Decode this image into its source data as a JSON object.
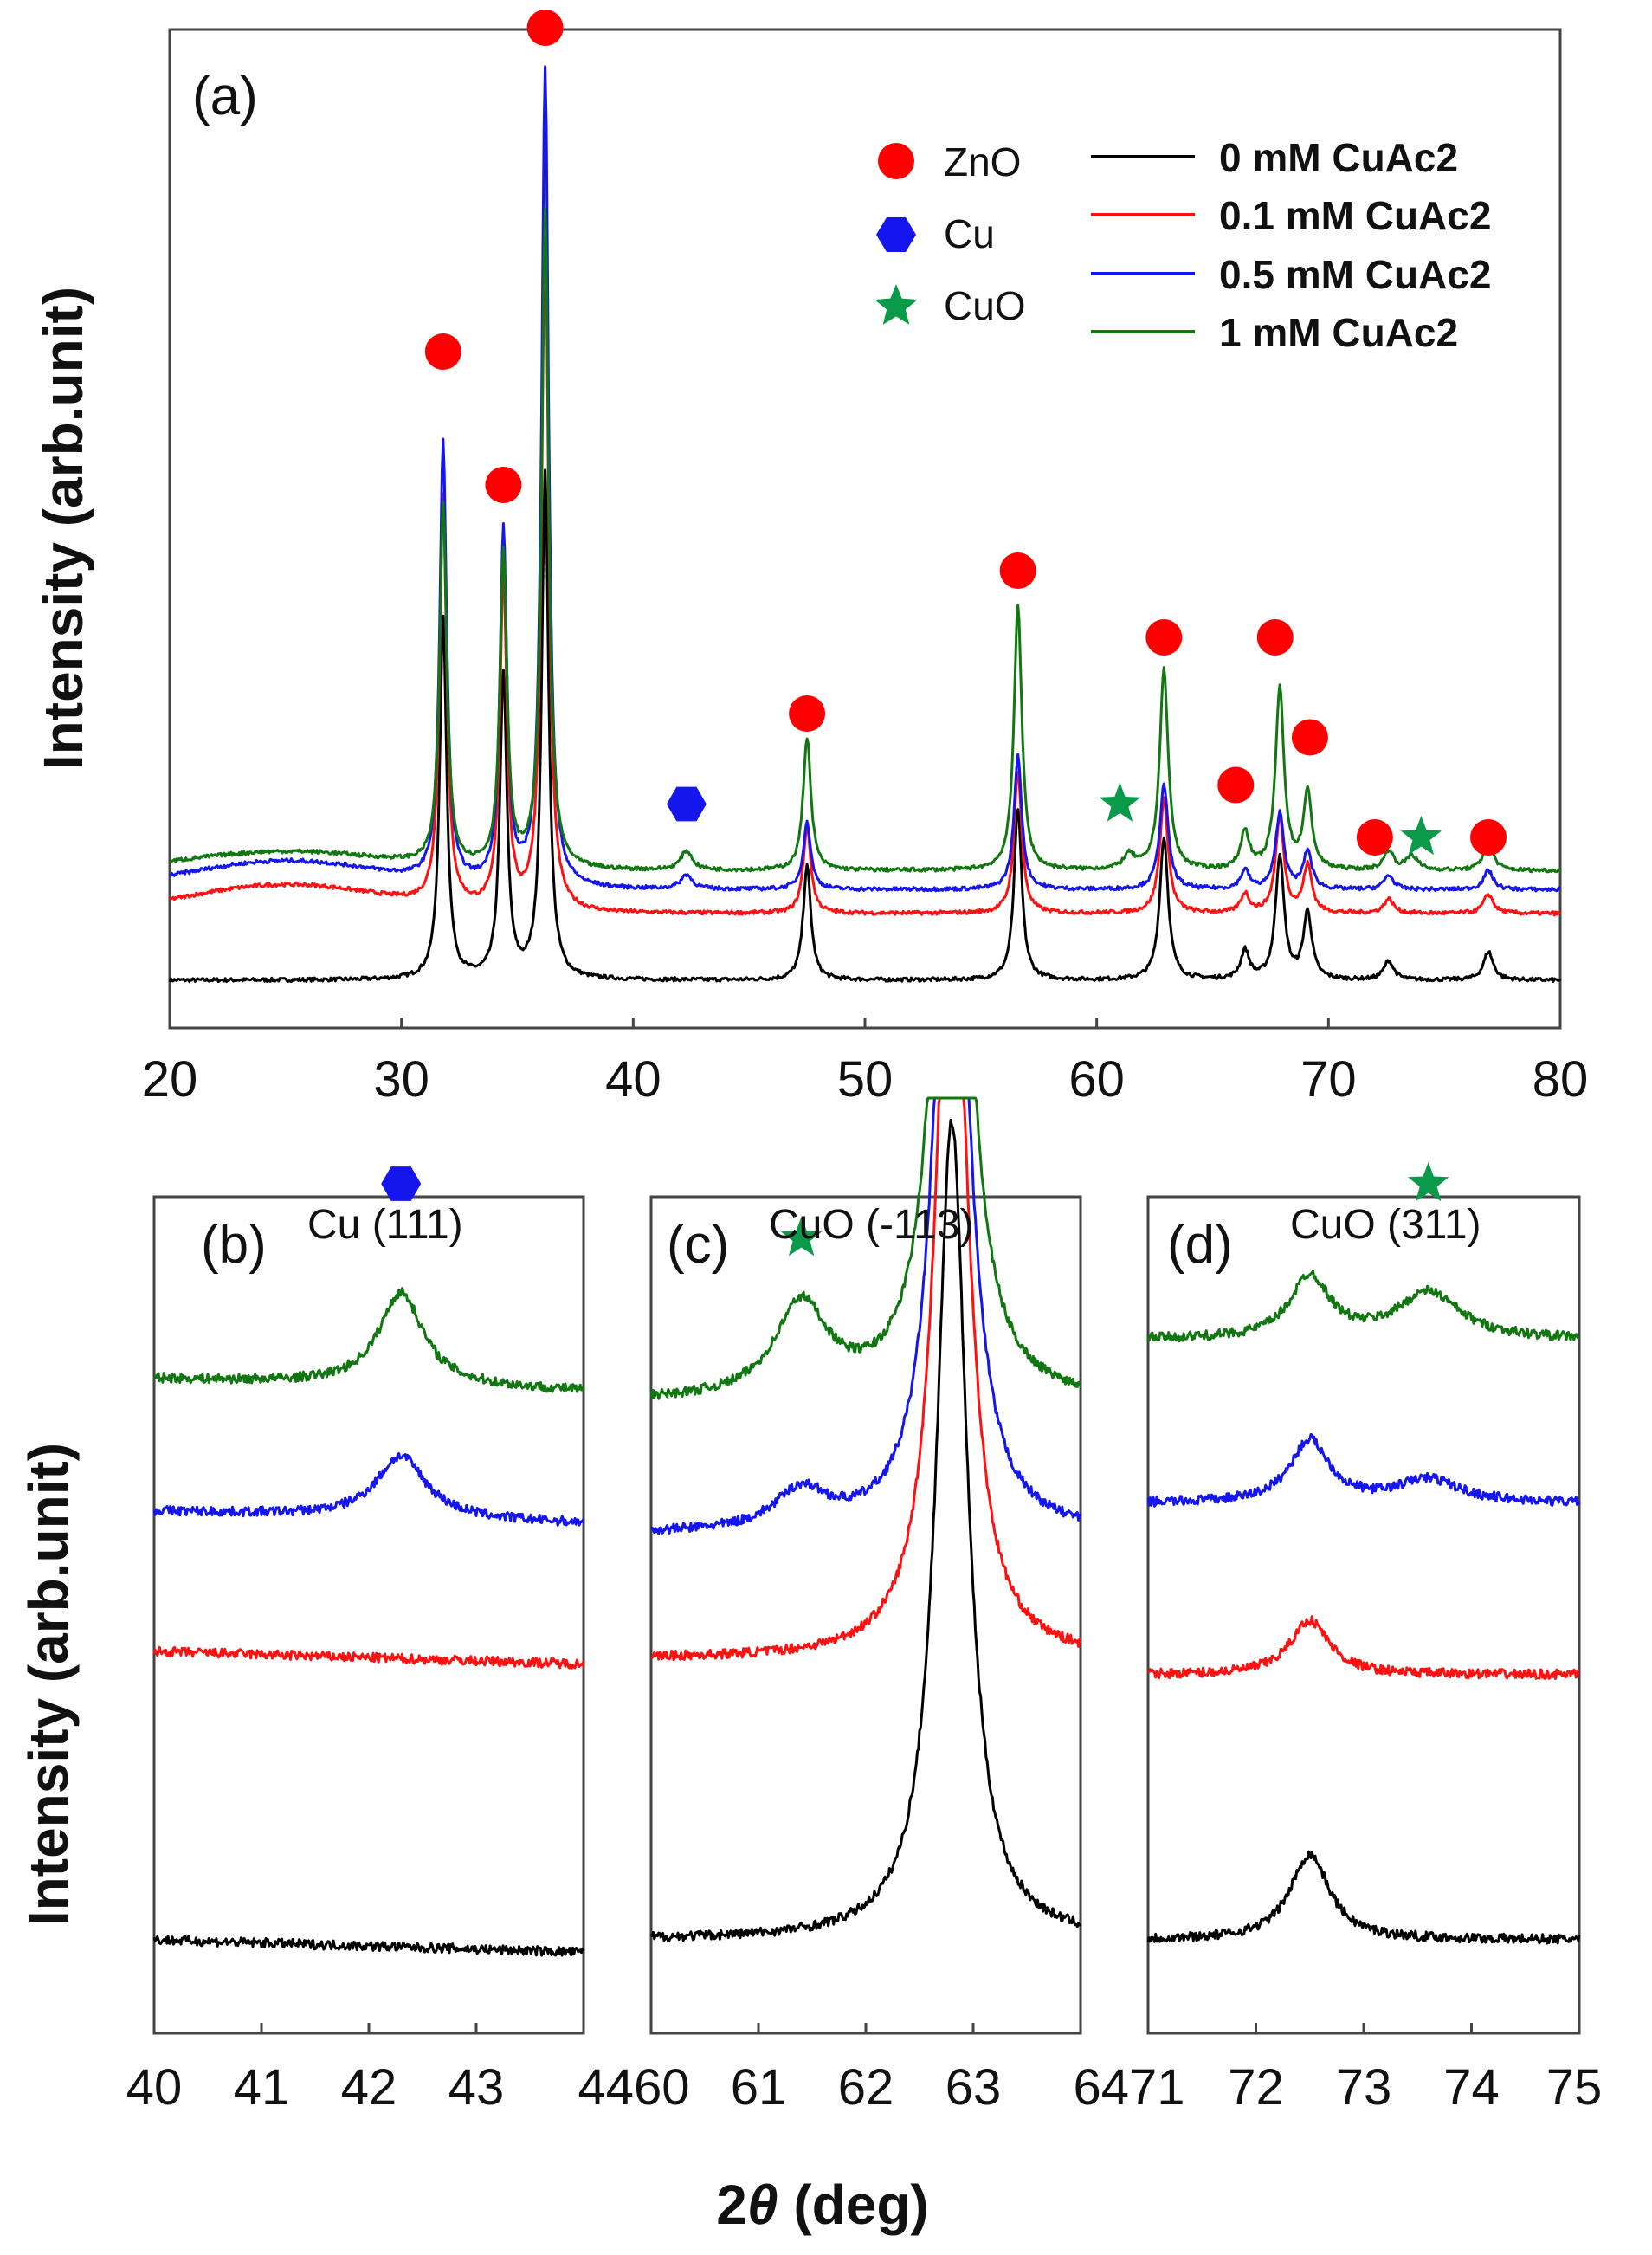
{
  "chart_data": [
    {
      "panel": "(a)",
      "type": "line",
      "xlim": [
        20,
        80
      ],
      "xticks": [
        20,
        30,
        40,
        50,
        60,
        70,
        80
      ],
      "ylabel": "Intensity (arb.unit)",
      "series": [
        {
          "name": "0 mM CuAc2",
          "color": "#000000",
          "baseline": 0.05,
          "peaks": [
            [
              31.8,
              0.38,
              0.18
            ],
            [
              34.4,
              0.32,
              0.18
            ],
            [
              36.2,
              0.53,
              0.18
            ],
            [
              47.5,
              0.12,
              0.2
            ],
            [
              56.6,
              0.18,
              0.2
            ],
            [
              62.9,
              0.15,
              0.22
            ],
            [
              66.4,
              0.03,
              0.22
            ],
            [
              67.9,
              0.13,
              0.22
            ],
            [
              69.1,
              0.07,
              0.22
            ],
            [
              72.6,
              0.02,
              0.25
            ],
            [
              76.9,
              0.03,
              0.25
            ]
          ]
        },
        {
          "name": "0.1 mM CuAc2",
          "color": "#ff1111",
          "baseline": 0.12,
          "hump": 0.03,
          "peaks": [
            [
              31.8,
              0.43,
              0.18
            ],
            [
              34.4,
              0.35,
              0.18
            ],
            [
              36.2,
              0.72,
              0.18
            ],
            [
              47.5,
              0.09,
              0.2
            ],
            [
              56.6,
              0.15,
              0.2
            ],
            [
              62.9,
              0.12,
              0.22
            ],
            [
              66.4,
              0.02,
              0.22
            ],
            [
              67.9,
              0.1,
              0.22
            ],
            [
              69.1,
              0.05,
              0.22
            ],
            [
              72.6,
              0.015,
              0.25
            ],
            [
              76.9,
              0.02,
              0.25
            ]
          ]
        },
        {
          "name": "0.5 mM CuAc2",
          "color": "#1515ee",
          "baseline": 0.145,
          "hump": 0.03,
          "peaks": [
            [
              31.8,
              0.46,
              0.18
            ],
            [
              34.4,
              0.37,
              0.18
            ],
            [
              36.2,
              0.86,
              0.18
            ],
            [
              42.3,
              0.015,
              0.3
            ],
            [
              47.5,
              0.07,
              0.2
            ],
            [
              56.6,
              0.14,
              0.2
            ],
            [
              62.9,
              0.11,
              0.22
            ],
            [
              66.4,
              0.02,
              0.22
            ],
            [
              67.9,
              0.08,
              0.22
            ],
            [
              69.1,
              0.04,
              0.22
            ],
            [
              72.6,
              0.015,
              0.25
            ],
            [
              76.9,
              0.02,
              0.25
            ]
          ]
        },
        {
          "name": "1 mM CuAc2",
          "color": "#117711",
          "baseline": 0.165,
          "hump": 0.02,
          "peaks": [
            [
              31.8,
              0.38,
              0.18
            ],
            [
              34.4,
              0.33,
              0.18
            ],
            [
              36.2,
              0.69,
              0.18
            ],
            [
              42.3,
              0.02,
              0.3
            ],
            [
              47.5,
              0.14,
              0.2
            ],
            [
              56.6,
              0.28,
              0.2
            ],
            [
              61.4,
              0.015,
              0.3
            ],
            [
              62.9,
              0.21,
              0.22
            ],
            [
              66.4,
              0.04,
              0.22
            ],
            [
              67.9,
              0.19,
              0.22
            ],
            [
              69.1,
              0.08,
              0.22
            ],
            [
              72.6,
              0.02,
              0.25
            ],
            [
              73.6,
              0.015,
              0.3
            ],
            [
              76.9,
              0.03,
              0.25
            ]
          ]
        }
      ],
      "markers": [
        {
          "phase": "ZnO",
          "x": 31.8,
          "y": 0.71
        },
        {
          "phase": "ZnO",
          "x": 34.4,
          "y": 0.57
        },
        {
          "phase": "ZnO",
          "x": 36.2,
          "y": 1.05
        },
        {
          "phase": "Cu",
          "x": 42.3,
          "y": 0.235
        },
        {
          "phase": "ZnO",
          "x": 47.5,
          "y": 0.33
        },
        {
          "phase": "ZnO",
          "x": 56.6,
          "y": 0.48
        },
        {
          "phase": "CuO",
          "x": 61.0,
          "y": 0.235
        },
        {
          "phase": "ZnO",
          "x": 62.9,
          "y": 0.41
        },
        {
          "phase": "ZnO",
          "x": 66.0,
          "y": 0.255
        },
        {
          "phase": "ZnO",
          "x": 67.7,
          "y": 0.41
        },
        {
          "phase": "ZnO",
          "x": 69.2,
          "y": 0.305
        },
        {
          "phase": "ZnO",
          "x": 72.0,
          "y": 0.2
        },
        {
          "phase": "CuO",
          "x": 74.0,
          "y": 0.2
        },
        {
          "phase": "ZnO",
          "x": 76.9,
          "y": 0.2
        }
      ]
    },
    {
      "panel": "(b)",
      "type": "line",
      "peak_label": "Cu (111)",
      "xlim": [
        40,
        44
      ],
      "xticks": [
        40,
        41,
        42,
        43
      ],
      "series": [
        {
          "name": "0 mM CuAc2",
          "offset": 0.12,
          "peak_x": 42.3,
          "peak_h": 0.0,
          "width": 0.25
        },
        {
          "name": "0.1 mM CuAc2",
          "offset": 0.49,
          "peak_x": 42.3,
          "peak_h": 0.0,
          "width": 0.25
        },
        {
          "name": "0.5 mM CuAc2",
          "offset": 0.67,
          "peak_x": 42.3,
          "peak_h": 0.08,
          "width": 0.28
        },
        {
          "name": "1 mM CuAc2",
          "offset": 0.84,
          "peak_x": 42.3,
          "peak_h": 0.12,
          "width": 0.25
        }
      ],
      "markers": [
        {
          "phase": "Cu",
          "x": 42.3,
          "y": 1.09
        }
      ]
    },
    {
      "panel": "(c)",
      "type": "line",
      "peak_label": "CuO (-113)",
      "xlim": [
        60,
        64
      ],
      "xticks": [
        60,
        61,
        62,
        63,
        64
      ],
      "series": [
        {
          "name": "0 mM CuAc2",
          "offset": 0.12,
          "peak_x": 62.8,
          "peak_h": 3.0,
          "width": 0.06,
          "sat_x": 61.5,
          "sat_h": 0.0
        },
        {
          "name": "0.1 mM CuAc2",
          "offset": 0.48,
          "peak_x": 62.8,
          "peak_h": 3.0,
          "width": 0.06,
          "sat_x": 61.5,
          "sat_h": 0.0
        },
        {
          "name": "0.5 mM CuAc2",
          "offset": 0.64,
          "peak_x": 62.8,
          "peak_h": 3.0,
          "width": 0.06,
          "sat_x": 61.4,
          "sat_h": 0.05
        },
        {
          "name": "1 mM CuAc2",
          "offset": 0.81,
          "peak_x": 62.8,
          "peak_h": 3.0,
          "width": 0.06,
          "sat_x": 61.4,
          "sat_h": 0.12
        }
      ],
      "markers": [
        {
          "phase": "CuO",
          "x": 61.4,
          "y": 1.02
        }
      ]
    },
    {
      "panel": "(d)",
      "type": "line",
      "peak_label": "CuO (311)",
      "xlim": [
        71,
        75
      ],
      "xticks": [
        71,
        72,
        73,
        74,
        75
      ],
      "series": [
        {
          "name": "0 mM CuAc2",
          "offset": 0.12,
          "p1x": 72.5,
          "p1h": 0.11,
          "p2x": 73.6,
          "p2h": 0.0
        },
        {
          "name": "0.1 mM CuAc2",
          "offset": 0.46,
          "p1x": 72.5,
          "p1h": 0.07,
          "p2x": 73.6,
          "p2h": 0.0
        },
        {
          "name": "0.5 mM CuAc2",
          "offset": 0.68,
          "p1x": 72.5,
          "p1h": 0.08,
          "p2x": 73.6,
          "p2h": 0.03
        },
        {
          "name": "1 mM CuAc2",
          "offset": 0.89,
          "p1x": 72.5,
          "p1h": 0.08,
          "p2x": 73.6,
          "p2h": 0.06
        }
      ],
      "markers": [
        {
          "phase": "CuO",
          "x": 73.6,
          "y": 1.09
        }
      ]
    }
  ],
  "legend": {
    "phases": [
      {
        "label": "ZnO",
        "symbol": "circle",
        "color": "#ff0000"
      },
      {
        "label": "Cu",
        "symbol": "hexagon",
        "color": "#1515ee"
      },
      {
        "label": "CuO",
        "symbol": "star",
        "color": "#0b9a4a"
      }
    ],
    "series": [
      {
        "label": "0 mM CuAc2",
        "color": "#000000"
      },
      {
        "label": "0.1 mM CuAc2",
        "color": "#ff1111"
      },
      {
        "label": "0.5 mM CuAc2",
        "color": "#1515ee"
      },
      {
        "label": "1 mM CuAc2",
        "color": "#117711"
      }
    ]
  },
  "labels": {
    "panel_a": "(a)",
    "panel_b": "(b)",
    "panel_c": "(c)",
    "panel_d": "(d)",
    "peak_b": "Cu (111)",
    "peak_c": "CuO (-113)",
    "peak_d": "CuO (311)",
    "ylabel_top": "Intensity (arb.unit)",
    "ylabel_bottom": "Intensity (arb.unit)",
    "xlabel_num": "2",
    "xlabel_theta": "θ",
    "xlabel_unit": " (deg)"
  },
  "tick_labels": {
    "a": [
      "20",
      "30",
      "40",
      "50",
      "60",
      "70",
      "80"
    ],
    "b": [
      "40",
      "41",
      "42",
      "43"
    ],
    "c": [
      "4460",
      "61",
      "62",
      "63"
    ],
    "d": [
      "6471",
      "72",
      "73",
      "74",
      "75"
    ]
  }
}
